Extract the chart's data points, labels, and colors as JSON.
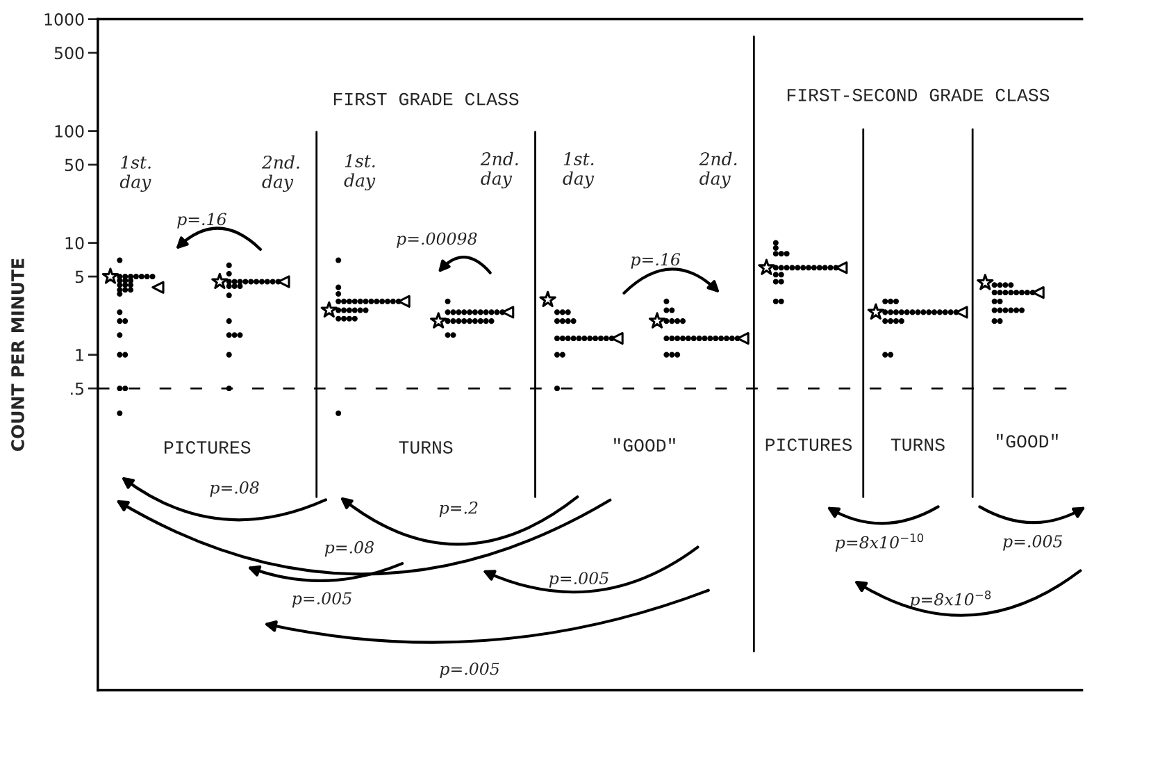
{
  "chart_data": {
    "type": "scatter",
    "ylabel": "COUNT PER MINUTE",
    "categories": [
      null,
      null,
      null,
      null,
      null,
      null,
      null,
      null,
      null
    ],
    "log": "y",
    "ylim": [
      0.001,
      1000
    ],
    "yticks": [
      1000,
      500,
      100,
      50,
      10,
      5,
      1,
      {
        "value": 0.5,
        "label": ".5"
      }
    ],
    "tick_labels": "y",
    "grid": false,
    "legend": false,
    "series": [
      {
        "type": "scatter",
        "marker": "circle",
        "color": "#000000",
        "values": [
          7,
          6.3,
          7,
          3,
          2.4,
          3,
          10,
          3,
          4.2
        ]
      },
      {
        "type": "scatter",
        "marker": "circle",
        "color": "#000000",
        "values": [
          5,
          5.3,
          4,
          2.4,
          2.4,
          2.5,
          9,
          3,
          4.2
        ]
      },
      {
        "type": "scatter",
        "marker": "circle",
        "color": "#000000",
        "values": [
          5,
          4.5,
          3.5,
          2.4,
          2.4,
          2.5,
          8,
          3,
          4.2
        ]
      },
      {
        "type": "scatter",
        "marker": "circle",
        "color": "#000000",
        "values": [
          5,
          4.5,
          3,
          2.4,
          2,
          2,
          8,
          2.4,
          4.2
        ]
      },
      {
        "type": "scatter",
        "marker": "circle",
        "color": "#000000",
        "values": [
          5,
          4.5,
          3,
          2.4,
          2,
          2,
          8,
          2.4,
          3.6
        ]
      },
      {
        "type": "scatter",
        "marker": "circle",
        "color": "#000000",
        "values": [
          5,
          4.5,
          3,
          2.4,
          2,
          2,
          6,
          2.4,
          3.6
        ]
      },
      {
        "type": "scatter",
        "marker": "circle",
        "color": "#000000",
        "values": [
          5,
          4.5,
          3,
          2.4,
          2,
          2,
          6,
          2.4,
          3.6
        ]
      },
      {
        "type": "scatter",
        "marker": "circle",
        "color": "#000000",
        "values": [
          5,
          4.5,
          3,
          2.4,
          1.4,
          1.4,
          6,
          2.4,
          3.6
        ]
      },
      {
        "type": "scatter",
        "marker": "circle",
        "color": "#000000",
        "values": [
          4.6,
          4.5,
          3,
          2.4,
          1.4,
          1.4,
          6,
          2.4,
          3.6
        ]
      },
      {
        "type": "scatter",
        "marker": "circle",
        "color": "#000000",
        "values": [
          4.6,
          4.5,
          3,
          2.4,
          1.4,
          1.4,
          6,
          2.4,
          3.6
        ]
      },
      {
        "type": "scatter",
        "marker": "circle",
        "color": "#000000",
        "values": [
          4.6,
          4.5,
          3,
          2.4,
          1.4,
          1.4,
          6,
          2.4,
          3.6
        ]
      },
      {
        "type": "scatter",
        "marker": "circle",
        "color": "#000000",
        "values": [
          4.2,
          4.5,
          3,
          2.4,
          1.4,
          1.4,
          6,
          2.4,
          3.6
        ]
      },
      {
        "type": "scatter",
        "marker": "circle",
        "color": "#000000",
        "values": [
          4.2,
          4.1,
          3,
          2,
          1.4,
          1.4,
          6,
          2.4,
          3
        ]
      },
      {
        "type": "scatter",
        "marker": "circle",
        "color": "#000000",
        "values": [
          4.2,
          4.1,
          3,
          2,
          1.4,
          1.4,
          6,
          2.4,
          3
        ]
      },
      {
        "type": "scatter",
        "marker": "circle",
        "color": "#000000",
        "values": [
          3.8,
          4.1,
          3,
          2,
          1.4,
          1.4,
          6,
          2.4,
          2.5
        ]
      },
      {
        "type": "scatter",
        "marker": "circle",
        "color": "#000000",
        "values": [
          3.8,
          3.4,
          2.5,
          2,
          1.4,
          1.4,
          6,
          2.4,
          2.5
        ]
      },
      {
        "type": "scatter",
        "marker": "circle",
        "color": "#000000",
        "values": [
          3.8,
          2,
          2.5,
          2,
          1.4,
          1.4,
          6,
          2.4,
          2.5
        ]
      },
      {
        "type": "scatter",
        "marker": "circle",
        "color": "#000000",
        "values": [
          3.5,
          1.5,
          2.5,
          2,
          1.4,
          1.4,
          5.2,
          2,
          2.5
        ]
      },
      {
        "type": "scatter",
        "marker": "circle",
        "color": "#000000",
        "values": [
          2.4,
          1.5,
          2.5,
          2,
          1,
          1.4,
          5.2,
          2,
          2.5
        ]
      },
      {
        "type": "scatter",
        "marker": "circle",
        "color": "#000000",
        "values": [
          2,
          1.5,
          2.5,
          2,
          1,
          1.4,
          4.5,
          2,
          2.5
        ]
      },
      {
        "type": "scatter",
        "marker": "circle",
        "color": "#000000",
        "values": [
          2,
          1,
          2.5,
          2,
          0.5,
          1.4,
          4.5,
          2,
          2
        ]
      },
      {
        "type": "scatter",
        "marker": "circle",
        "color": "#000000",
        "values": [
          1.5,
          0.5,
          2.1,
          1.5,
          null,
          1,
          3,
          1,
          2
        ]
      },
      {
        "type": "scatter",
        "marker": "circle",
        "color": "#000000",
        "values": [
          1,
          null,
          2.1,
          1.5,
          null,
          1,
          3,
          1,
          null
        ]
      },
      {
        "type": "scatter",
        "marker": "circle",
        "color": "#000000",
        "values": [
          1,
          null,
          2.1,
          null,
          null,
          1,
          null,
          null,
          null
        ]
      },
      {
        "type": "scatter",
        "marker": "circle",
        "color": "#000000",
        "values": [
          0.5,
          null,
          2.1,
          null,
          null,
          null,
          null,
          null,
          null
        ]
      },
      {
        "type": "scatter",
        "marker": "circle",
        "color": "#000000",
        "values": [
          0.5,
          null,
          0.3,
          null,
          null,
          null,
          null,
          null,
          null
        ]
      },
      {
        "type": "scatter",
        "marker": "circle",
        "color": "#000000",
        "values": [
          0.3,
          null,
          null,
          null,
          null,
          null,
          null,
          null,
          null
        ]
      },
      {
        "type": "scatter",
        "marker": "star",
        "color": "#000000",
        "values": [
          5,
          4.5,
          2.5,
          2,
          3.1,
          2,
          6,
          2.4,
          4.4
        ]
      },
      {
        "type": "scatter",
        "marker": "triangle",
        "color": "#000000",
        "values": [
          4,
          4.5,
          3,
          2.4,
          1.4,
          1.4,
          6,
          2.4,
          3.6
        ]
      }
    ],
    "ref_lines": [
      {
        "axis": "y",
        "value": 0.5,
        "color": "#000000",
        "line_style": "dashed"
      }
    ],
    "annotations": [
      "FIRST GRADE CLASS",
      "FIRST-SECOND GRADE CLASS",
      "1st. day",
      "2nd. day",
      "1st. day",
      "2nd. day",
      "1st. day",
      "2nd. day",
      "PICTURES",
      "TURNS",
      "\"GOOD\"",
      "PICTURES",
      "TURNS",
      "\"GOOD\"",
      "p=.16",
      "p=.00098",
      "p=.16",
      "p=.08",
      "p=.2",
      "p=.08",
      "p=.005",
      "p=.005",
      "p=.005",
      "p=8x10$^{−10}$",
      "p=.005",
      "p=8x10$^{−8}$"
    ]
  }
}
